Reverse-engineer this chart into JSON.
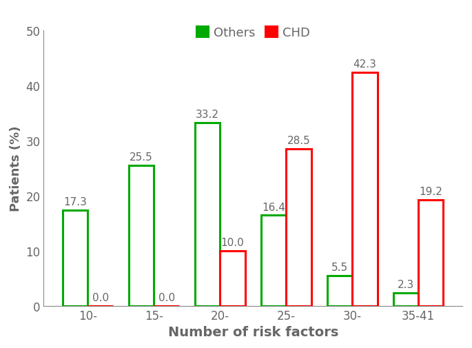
{
  "categories": [
    "10-",
    "15-",
    "20-",
    "25-",
    "30-",
    "35-41"
  ],
  "others_values": [
    17.3,
    25.5,
    33.2,
    16.4,
    5.5,
    2.3
  ],
  "chd_values": [
    0.0,
    0.0,
    10.0,
    28.5,
    42.3,
    19.2
  ],
  "others_color": "#00aa00",
  "chd_color": "#ff0000",
  "bar_width": 0.38,
  "ylim": [
    0,
    50
  ],
  "yticks": [
    0,
    10,
    20,
    30,
    40,
    50
  ],
  "xlabel": "Number of risk factors",
  "ylabel": "Patients (%)",
  "legend_others": "Others",
  "legend_chd": "CHD",
  "tick_fontsize": 12,
  "annotation_fontsize": 11,
  "xlabel_fontsize": 14,
  "ylabel_fontsize": 13,
  "background_color": "#ffffff",
  "text_color": "#666666",
  "spine_color": "#888888"
}
